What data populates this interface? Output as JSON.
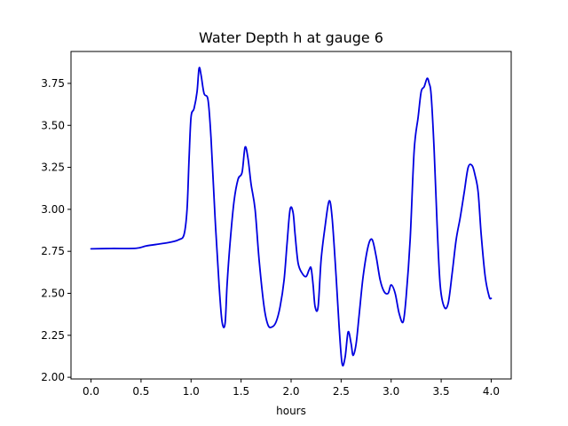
{
  "chart_data": {
    "type": "line",
    "title": "Water Depth h at gauge 6",
    "xlabel": "hours",
    "ylabel": "",
    "xlim": [
      -0.2,
      4.2
    ],
    "ylim": [
      1.99,
      3.94
    ],
    "xticks": [
      0.0,
      0.5,
      1.0,
      1.5,
      2.0,
      2.5,
      3.0,
      3.5,
      4.0
    ],
    "xtick_labels": [
      "0.0",
      "0.5",
      "1.0",
      "1.5",
      "2.0",
      "2.5",
      "3.0",
      "3.5",
      "4.0"
    ],
    "yticks": [
      2.0,
      2.25,
      2.5,
      2.75,
      3.0,
      3.25,
      3.5,
      3.75
    ],
    "ytick_labels": [
      "2.00",
      "2.25",
      "2.50",
      "2.75",
      "3.00",
      "3.25",
      "3.50",
      "3.75"
    ],
    "grid": false,
    "series": [
      {
        "color": "#0000e0",
        "x": [
          0.0,
          0.2,
          0.45,
          0.55,
          0.7,
          0.8,
          0.88,
          0.93,
          0.96,
          0.98,
          1.0,
          1.03,
          1.06,
          1.08,
          1.1,
          1.13,
          1.17,
          1.2,
          1.24,
          1.28,
          1.31,
          1.34,
          1.36,
          1.39,
          1.43,
          1.47,
          1.51,
          1.54,
          1.57,
          1.6,
          1.64,
          1.68,
          1.73,
          1.77,
          1.81,
          1.85,
          1.89,
          1.93,
          1.96,
          1.99,
          2.02,
          2.04,
          2.07,
          2.11,
          2.15,
          2.18,
          2.2,
          2.22,
          2.24,
          2.27,
          2.3,
          2.34,
          2.38,
          2.41,
          2.45,
          2.48,
          2.51,
          2.54,
          2.57,
          2.6,
          2.62,
          2.65,
          2.68,
          2.72,
          2.77,
          2.81,
          2.85,
          2.89,
          2.93,
          2.97,
          3.0,
          3.04,
          3.08,
          3.12,
          3.15,
          3.19,
          3.23,
          3.27,
          3.3,
          3.33,
          3.36,
          3.38,
          3.4,
          3.43,
          3.46,
          3.49,
          3.53,
          3.57,
          3.61,
          3.65,
          3.69,
          3.73,
          3.77,
          3.81,
          3.84,
          3.87,
          3.9,
          3.94,
          3.98,
          4.0
        ],
        "y": [
          2.765,
          2.767,
          2.768,
          2.782,
          2.795,
          2.805,
          2.82,
          2.85,
          3.0,
          3.3,
          3.55,
          3.6,
          3.7,
          3.84,
          3.8,
          3.69,
          3.65,
          3.42,
          2.95,
          2.55,
          2.33,
          2.32,
          2.55,
          2.8,
          3.05,
          3.18,
          3.22,
          3.37,
          3.3,
          3.15,
          3.0,
          2.7,
          2.42,
          2.31,
          2.3,
          2.33,
          2.42,
          2.58,
          2.8,
          3.0,
          2.98,
          2.85,
          2.68,
          2.62,
          2.6,
          2.64,
          2.65,
          2.55,
          2.42,
          2.42,
          2.7,
          2.9,
          3.05,
          2.95,
          2.6,
          2.3,
          2.08,
          2.12,
          2.27,
          2.2,
          2.13,
          2.2,
          2.37,
          2.6,
          2.78,
          2.82,
          2.72,
          2.58,
          2.51,
          2.5,
          2.55,
          2.5,
          2.38,
          2.33,
          2.48,
          2.82,
          3.35,
          3.55,
          3.7,
          3.73,
          3.78,
          3.75,
          3.68,
          3.35,
          2.9,
          2.55,
          2.42,
          2.44,
          2.62,
          2.82,
          2.95,
          3.1,
          3.25,
          3.26,
          3.2,
          3.1,
          2.85,
          2.6,
          2.48,
          2.47
        ]
      }
    ]
  }
}
